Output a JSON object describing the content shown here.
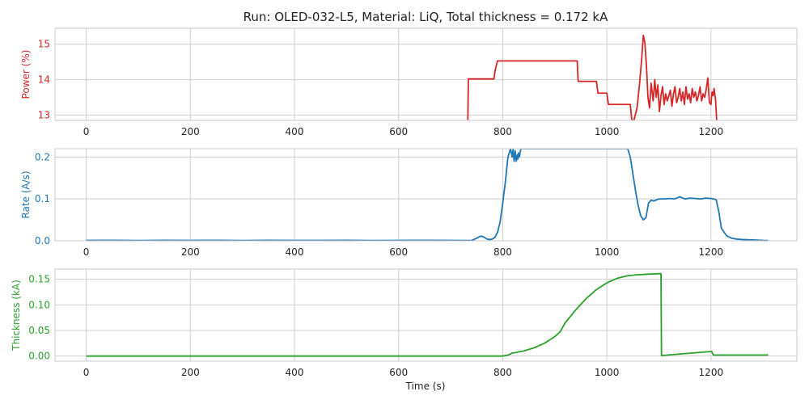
{
  "chart_data": {
    "title": "Run: OLED-032-L5, Material: LiQ, Total thickness = 0.172 kA",
    "xlabel": "Time (s)",
    "x_ticks": [
      0,
      200,
      400,
      600,
      800,
      1000,
      1200
    ],
    "xlim": [
      -60,
      1365
    ],
    "grid": true,
    "panels": [
      {
        "type": "line",
        "ylabel": "Power (%)",
        "color": "#d62728",
        "ylim": [
          12.85,
          15.45
        ],
        "y_ticks": [
          13,
          14,
          15
        ],
        "series": [
          {
            "x": [
              733,
              734,
              736,
              783,
              786,
              790,
              943,
              945,
              980,
              983,
              1000,
              1003,
              1045,
              1048,
              1052,
              1058,
              1063,
              1067,
              1070,
              1073,
              1076,
              1079,
              1082,
              1085,
              1089,
              1092,
              1095,
              1098,
              1101,
              1104,
              1107,
              1110,
              1113,
              1116,
              1119,
              1122,
              1125,
              1128,
              1131,
              1134,
              1137,
              1140,
              1143,
              1146,
              1149,
              1152,
              1155,
              1158,
              1161,
              1164,
              1167,
              1170,
              1173,
              1176,
              1179,
              1182,
              1185,
              1188,
              1191,
              1194,
              1197,
              1200,
              1202,
              1204,
              1206,
              1209,
              1211
            ],
            "y": [
              12.85,
              14.02,
              14.02,
              14.02,
              14.3,
              14.53,
              14.53,
              13.95,
              13.95,
              13.62,
              13.62,
              13.3,
              13.3,
              12.85,
              12.85,
              13.2,
              13.9,
              14.6,
              15.25,
              15.05,
              14.4,
              13.5,
              13.2,
              13.9,
              13.4,
              14.0,
              13.5,
              13.85,
              13.1,
              13.55,
              13.8,
              13.3,
              13.6,
              13.4,
              13.55,
              13.7,
              13.25,
              13.6,
              13.8,
              13.35,
              13.5,
              13.75,
              13.4,
              13.65,
              13.3,
              13.8,
              13.45,
              13.6,
              13.35,
              13.75,
              13.5,
              13.65,
              13.4,
              13.55,
              13.8,
              13.4,
              13.6,
              13.5,
              13.75,
              14.05,
              13.35,
              13.3,
              13.65,
              13.55,
              13.75,
              13.4,
              12.85
            ]
          }
        ]
      },
      {
        "type": "line",
        "ylabel": "Rate (A/s)",
        "color": "#1f77b4",
        "ylim": [
          0,
          0.22
        ],
        "y_ticks": [
          0.0,
          0.1,
          0.2
        ],
        "tick_format": "fixed1",
        "series": [
          {
            "x": [
              0,
              50,
              100,
              150,
              200,
              250,
              300,
              350,
              400,
              450,
              500,
              550,
              600,
              650,
              700,
              740,
              750,
              755,
              760,
              765,
              770,
              775,
              780,
              785,
              790,
              795,
              800,
              805,
              810,
              815,
              818,
              820,
              821,
              822,
              824,
              825,
              826,
              828,
              829,
              830,
              832,
              834,
              835,
              1040,
              1045,
              1050,
              1055,
              1060,
              1065,
              1070,
              1075,
              1078,
              1080,
              1085,
              1090,
              1100,
              1110,
              1120,
              1130,
              1140,
              1150,
              1160,
              1170,
              1180,
              1190,
              1200,
              1205,
              1210,
              1215,
              1220,
              1230,
              1240,
              1250,
              1260,
              1280,
              1300,
              1310
            ],
            "y": [
              0.001,
              0.0012,
              0.0008,
              0.0011,
              0.0009,
              0.0012,
              0.0008,
              0.0011,
              0.001,
              0.0009,
              0.0012,
              0.0008,
              0.001,
              0.0011,
              0.0009,
              0.0008,
              0.006,
              0.01,
              0.011,
              0.008,
              0.004,
              0.003,
              0.004,
              0.008,
              0.02,
              0.045,
              0.09,
              0.14,
              0.2,
              0.22,
              0.2,
              0.22,
              0.2,
              0.19,
              0.215,
              0.2,
              0.19,
              0.205,
              0.195,
              0.21,
              0.2,
              0.215,
              0.22,
              0.22,
              0.2,
              0.16,
              0.12,
              0.085,
              0.06,
              0.05,
              0.055,
              0.075,
              0.09,
              0.097,
              0.095,
              0.1,
              0.1,
              0.101,
              0.1,
              0.105,
              0.1,
              0.102,
              0.101,
              0.1,
              0.102,
              0.101,
              0.1,
              0.098,
              0.07,
              0.03,
              0.012,
              0.006,
              0.004,
              0.003,
              0.002,
              0.001,
              0.0008
            ]
          }
        ]
      },
      {
        "type": "line",
        "ylabel": "Thickness (kA)",
        "color": "#2ca02c",
        "ylim": [
          -0.01,
          0.17
        ],
        "y_ticks": [
          0.0,
          0.05,
          0.1,
          0.15
        ],
        "tick_format": "fixed2",
        "series": [
          {
            "x": [
              0,
              800,
              805,
              810,
              815,
              818,
              820,
              840,
              860,
              880,
              900,
              910,
              920,
              940,
              960,
              980,
              1000,
              1020,
              1040,
              1060,
              1080,
              1100,
              1104,
              1105,
              1200,
              1201,
              1205,
              1206,
              1300,
              1310
            ],
            "y": [
              0.0,
              0.0,
              0.001,
              0.002,
              0.004,
              0.006,
              0.006,
              0.01,
              0.016,
              0.025,
              0.038,
              0.047,
              0.065,
              0.09,
              0.112,
              0.13,
              0.143,
              0.152,
              0.157,
              0.159,
              0.16,
              0.161,
              0.161,
              0.001,
              0.009,
              0.009,
              0.002,
              0.002,
              0.002,
              0.002
            ]
          }
        ]
      }
    ]
  }
}
